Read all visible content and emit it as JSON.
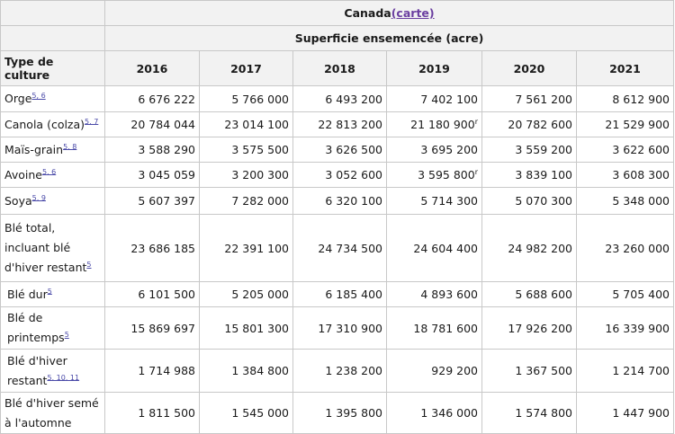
{
  "header": {
    "region": "Canada",
    "map_link": "(carte)",
    "measure": "Superficie ensemencée (acre)",
    "type_header": "Type de culture",
    "years": [
      "2016",
      "2017",
      "2018",
      "2019",
      "2020",
      "2021"
    ]
  },
  "rows": [
    {
      "label": "Orge",
      "notes": "5, 6",
      "values": [
        "6 676 222",
        "5 766 000",
        "6 493 200",
        "7 402 100",
        "7 561 200",
        "8 612 900"
      ],
      "flags": [
        "",
        "",
        "",
        "",
        "",
        ""
      ]
    },
    {
      "label": "Canola (colza)",
      "notes": "5, 7",
      "values": [
        "20 784 044",
        "23 014 100",
        "22 813 200",
        "21 180 900",
        "20 782 600",
        "21 529 900"
      ],
      "flags": [
        "",
        "",
        "",
        "r",
        "",
        ""
      ]
    },
    {
      "label": "Maïs-grain",
      "notes": "5, 8",
      "values": [
        "3 588 290",
        "3 575 500",
        "3 626 500",
        "3 695 200",
        "3 559 200",
        "3 622 600"
      ],
      "flags": [
        "",
        "",
        "",
        "",
        "",
        ""
      ]
    },
    {
      "label": "Avoine",
      "notes": "5, 6",
      "values": [
        "3 045 059",
        "3 200 300",
        "3 052 600",
        "3 595 800",
        "3 839 100",
        "3 608 300"
      ],
      "flags": [
        "",
        "",
        "",
        "r",
        "",
        ""
      ]
    },
    {
      "label": "Soya",
      "notes": "5, 9",
      "values": [
        "5 607 397",
        "7 282 000",
        "6 320 100",
        "5 714 300",
        "5 070 300",
        "5 348 000"
      ],
      "flags": [
        "",
        "",
        "",
        "",
        "",
        ""
      ]
    },
    {
      "label": "Blé total, incluant blé d'hiver restant",
      "notes": "5",
      "values": [
        "23 686 185",
        "22 391 100",
        "24 734 500",
        "24 604 400",
        "24 982 200",
        "23 260 000"
      ],
      "flags": [
        "",
        "",
        "",
        "",
        "",
        ""
      ]
    },
    {
      "label": "Blé dur",
      "notes": "5",
      "values": [
        "6 101 500",
        "5 205 000",
        "6 185 400",
        "4 893 600",
        "5 688 600",
        "5 705 400"
      ],
      "flags": [
        "",
        "",
        "",
        "",
        "",
        ""
      ]
    },
    {
      "label": "Blé de printemps",
      "notes": "5",
      "values": [
        "15 869 697",
        "15 801 300",
        "17 310 900",
        "18 781 600",
        "17 926 200",
        "16 339 900"
      ],
      "flags": [
        "",
        "",
        "",
        "",
        "",
        ""
      ]
    },
    {
      "label": "Blé d'hiver restant",
      "notes": "5, 10, 11",
      "values": [
        "1 714 988",
        "1 384 800",
        "1 238 200",
        "929 200",
        "1 367 500",
        "1 214 700"
      ],
      "flags": [
        "",
        "",
        "",
        "",
        "",
        ""
      ]
    },
    {
      "label": "Blé d'hiver semé à l'automne",
      "notes": "",
      "values": [
        "1 811 500",
        "1 545 000",
        "1 395 800",
        "1 346 000",
        "1 574 800",
        "1 447 900"
      ],
      "flags": [
        "",
        "",
        "",
        "",
        "",
        ""
      ]
    }
  ]
}
